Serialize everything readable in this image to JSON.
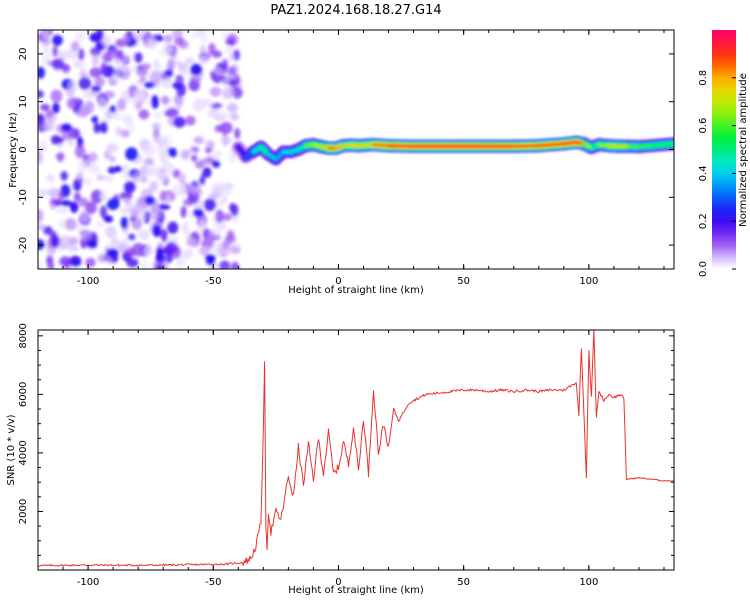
{
  "title": "PAZ1.2024.168.18.27.G14",
  "colors": {
    "snr_line": "#e8322e",
    "noise_point": "#7a2cf0",
    "axis": "#000000"
  },
  "chart_data": [
    {
      "type": "heatmap",
      "xlabel": "Height of straight line (km)",
      "ylabel": "Frequency (Hz)",
      "xlim": [
        -120,
        134
      ],
      "ylim": [
        -25,
        25
      ],
      "xticks": [
        -100,
        -50,
        0,
        50,
        100
      ],
      "xtick_labels": [
        "-100",
        "-50",
        "0",
        "50",
        "100"
      ],
      "yticks": [
        -20,
        -10,
        0,
        10,
        20
      ],
      "ytick_labels": [
        "-20",
        "-10",
        "0",
        "10",
        "20"
      ],
      "colorbar": {
        "label": "Normalized spectral amplitude",
        "range": [
          0,
          1
        ],
        "ticks": [
          0.0,
          0.2,
          0.4,
          0.6,
          0.8
        ],
        "tick_labels": [
          "0.0",
          "0.2",
          "0.4",
          "0.6",
          "0.8"
        ],
        "colormap": "gist_rainbow"
      },
      "noise_region": {
        "x_range": [
          -120,
          -40
        ],
        "y_range": [
          -25,
          25
        ],
        "amplitude_range": [
          0.02,
          0.25
        ]
      },
      "ridge": {
        "x": [
          -40,
          -37,
          -34,
          -31,
          -28,
          -25,
          -22,
          -19,
          -16,
          -13,
          -10,
          -7,
          -4,
          -1,
          2,
          5,
          8,
          11,
          14,
          20,
          30,
          40,
          50,
          60,
          70,
          80,
          90,
          95,
          98,
          101,
          104,
          108,
          112,
          116,
          120,
          125,
          134
        ],
        "frequency": [
          0.5,
          -1.5,
          -0.5,
          0.5,
          -1.0,
          -2.0,
          -0.5,
          -0.5,
          0.0,
          0.8,
          1.0,
          0.6,
          0.3,
          0.3,
          0.8,
          0.9,
          0.8,
          0.9,
          1.0,
          0.8,
          0.7,
          0.7,
          0.7,
          0.7,
          0.7,
          0.8,
          1.2,
          1.5,
          1.2,
          0.4,
          1.0,
          0.8,
          0.7,
          0.7,
          0.6,
          0.8,
          1.2
        ],
        "amplitude": [
          0.15,
          0.25,
          0.35,
          0.55,
          0.45,
          0.35,
          0.4,
          0.45,
          0.4,
          0.55,
          0.7,
          0.65,
          0.8,
          0.9,
          0.7,
          0.75,
          0.8,
          0.7,
          0.8,
          0.9,
          0.92,
          0.95,
          0.95,
          0.93,
          0.9,
          0.85,
          0.92,
          0.95,
          0.85,
          0.45,
          0.6,
          0.7,
          0.75,
          0.65,
          0.55,
          0.6,
          0.5
        ]
      }
    },
    {
      "type": "line",
      "xlabel": "Height of straight line (km)",
      "ylabel": "SNR (10 * v/v)",
      "xlim": [
        -120,
        134
      ],
      "ylim": [
        0,
        8200
      ],
      "xticks": [
        -100,
        -50,
        0,
        50,
        100
      ],
      "xtick_labels": [
        "-100",
        "-50",
        "0",
        "50",
        "100"
      ],
      "yticks": [
        2000,
        4000,
        6000,
        8000
      ],
      "ytick_labels": [
        "2000",
        "4000",
        "6000",
        "8000"
      ],
      "series": [
        {
          "x": [
            -120,
            -100,
            -80,
            -60,
            -45,
            -38,
            -35,
            -33,
            -31,
            -30,
            -29.5,
            -29,
            -28.5,
            -28,
            -27,
            -25,
            -23,
            -20,
            -18,
            -16,
            -14,
            -12,
            -10,
            -8,
            -6,
            -4,
            -2,
            0,
            2,
            4,
            6,
            8,
            10,
            12,
            14,
            16,
            18,
            20,
            22,
            24,
            26,
            28,
            30,
            35,
            40,
            45,
            50,
            55,
            60,
            65,
            70,
            75,
            80,
            85,
            90,
            93,
            95,
            96,
            97,
            98,
            99,
            100,
            101,
            102,
            103,
            104,
            106,
            108,
            110,
            113,
            114,
            115,
            120,
            125,
            130,
            134
          ],
          "y": [
            150,
            170,
            160,
            180,
            200,
            260,
            400,
            800,
            1600,
            4800,
            7000,
            1500,
            800,
            2000,
            1300,
            2000,
            1700,
            3200,
            2500,
            4200,
            2900,
            4300,
            3100,
            4500,
            3300,
            4700,
            3300,
            3500,
            4400,
            3600,
            4900,
            3400,
            5200,
            3300,
            6200,
            4000,
            5000,
            4200,
            5500,
            5100,
            5400,
            5700,
            5800,
            6000,
            6050,
            6100,
            6150,
            6150,
            6100,
            6150,
            6100,
            6150,
            6100,
            6150,
            6150,
            6300,
            6400,
            5300,
            7600,
            5400,
            3200,
            7500,
            5900,
            8200,
            5200,
            6100,
            5800,
            6000,
            5900,
            6000,
            5800,
            3100,
            3150,
            3100,
            3050,
            3050
          ]
        }
      ]
    }
  ]
}
